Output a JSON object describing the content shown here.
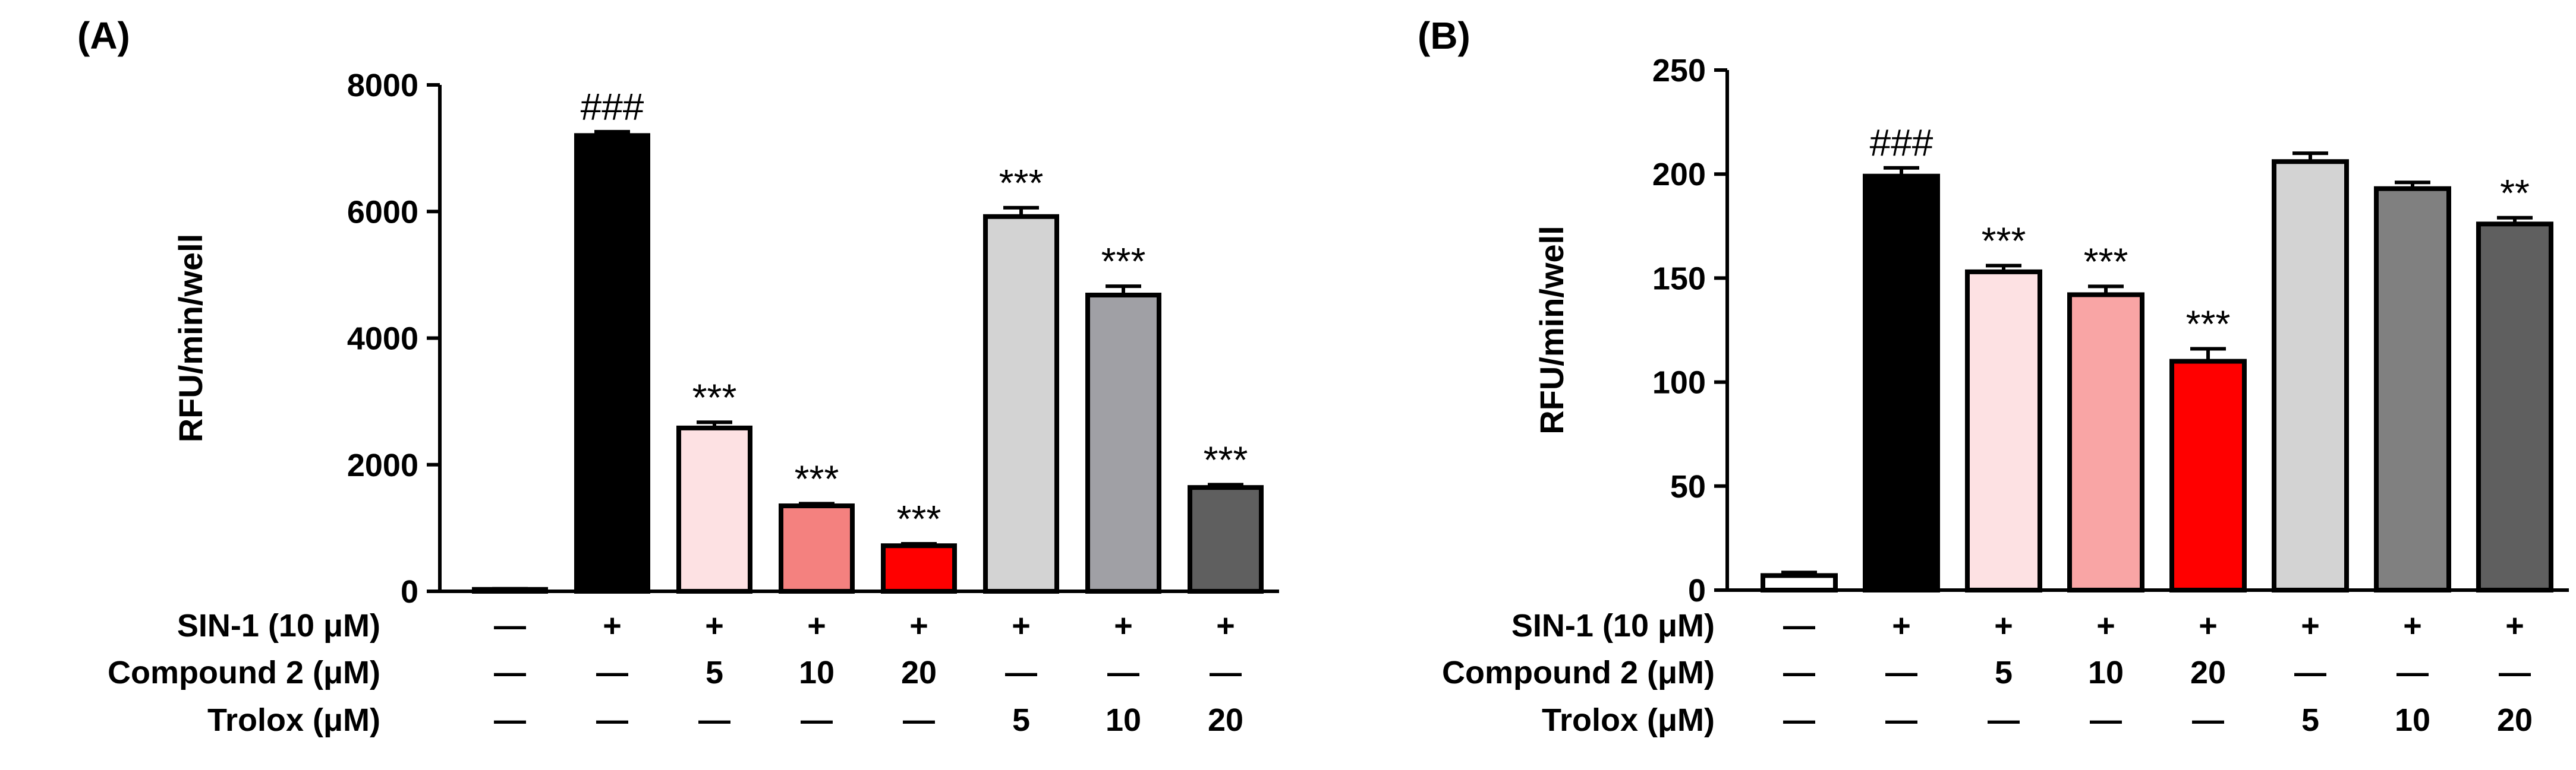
{
  "chart_data": [
    {
      "type": "bar",
      "panel_label": "(A)",
      "ylabel": "RFU/min/well",
      "ylim": [
        0,
        8000
      ],
      "yticks": [
        "0",
        "2000",
        "4000",
        "6000",
        "8000"
      ],
      "values": [
        30,
        7200,
        2580,
        1350,
        720,
        5920,
        4680,
        1640
      ],
      "errors": [
        10,
        60,
        90,
        35,
        30,
        140,
        140,
        45
      ],
      "significance": [
        "",
        "###",
        "***",
        "***",
        "***",
        "***",
        "***",
        "***"
      ],
      "colors": [
        "#ffffff",
        "#000000",
        "#fde1e3",
        "#f4817f",
        "#ff0000",
        "#d3d3d3",
        "#a0a0a5",
        "#5f5f5f"
      ],
      "rows": [
        {
          "label": "SIN-1 (10 μM)",
          "cells": [
            "—",
            "+",
            "+",
            "+",
            "+",
            "+",
            "+",
            "+"
          ]
        },
        {
          "label": "Compound 2 (μM)",
          "cells": [
            "—",
            "—",
            "5",
            "10",
            "20",
            "—",
            "—",
            "—"
          ]
        },
        {
          "label": "Trolox (μM)",
          "cells": [
            "—",
            "—",
            "—",
            "—",
            "—",
            "5",
            "10",
            "20"
          ]
        }
      ]
    },
    {
      "type": "bar",
      "panel_label": "(B)",
      "ylabel": "RFU/min/well",
      "ylim": [
        0,
        250
      ],
      "yticks": [
        "0",
        "50",
        "100",
        "150",
        "200",
        "250"
      ],
      "values": [
        7,
        199,
        153,
        142,
        110,
        206,
        193,
        176
      ],
      "errors": [
        1.5,
        4,
        3,
        4,
        6,
        4,
        3,
        3
      ],
      "significance": [
        "",
        "###",
        "***",
        "***",
        "***",
        "",
        "",
        "**"
      ],
      "colors": [
        "#ffffff",
        "#000000",
        "#fde1e3",
        "#f9a5a5",
        "#ff0000",
        "#d3d3d3",
        "#808080",
        "#5f5f5f"
      ],
      "rows": [
        {
          "label": "SIN-1 (10 μM)",
          "cells": [
            "—",
            "+",
            "+",
            "+",
            "+",
            "+",
            "+",
            "+"
          ]
        },
        {
          "label": "Compound 2 (μM)",
          "cells": [
            "—",
            "—",
            "5",
            "10",
            "20",
            "—",
            "—",
            "—"
          ]
        },
        {
          "label": "Trolox (μM)",
          "cells": [
            "—",
            "—",
            "—",
            "—",
            "—",
            "5",
            "10",
            "20"
          ]
        }
      ]
    }
  ]
}
